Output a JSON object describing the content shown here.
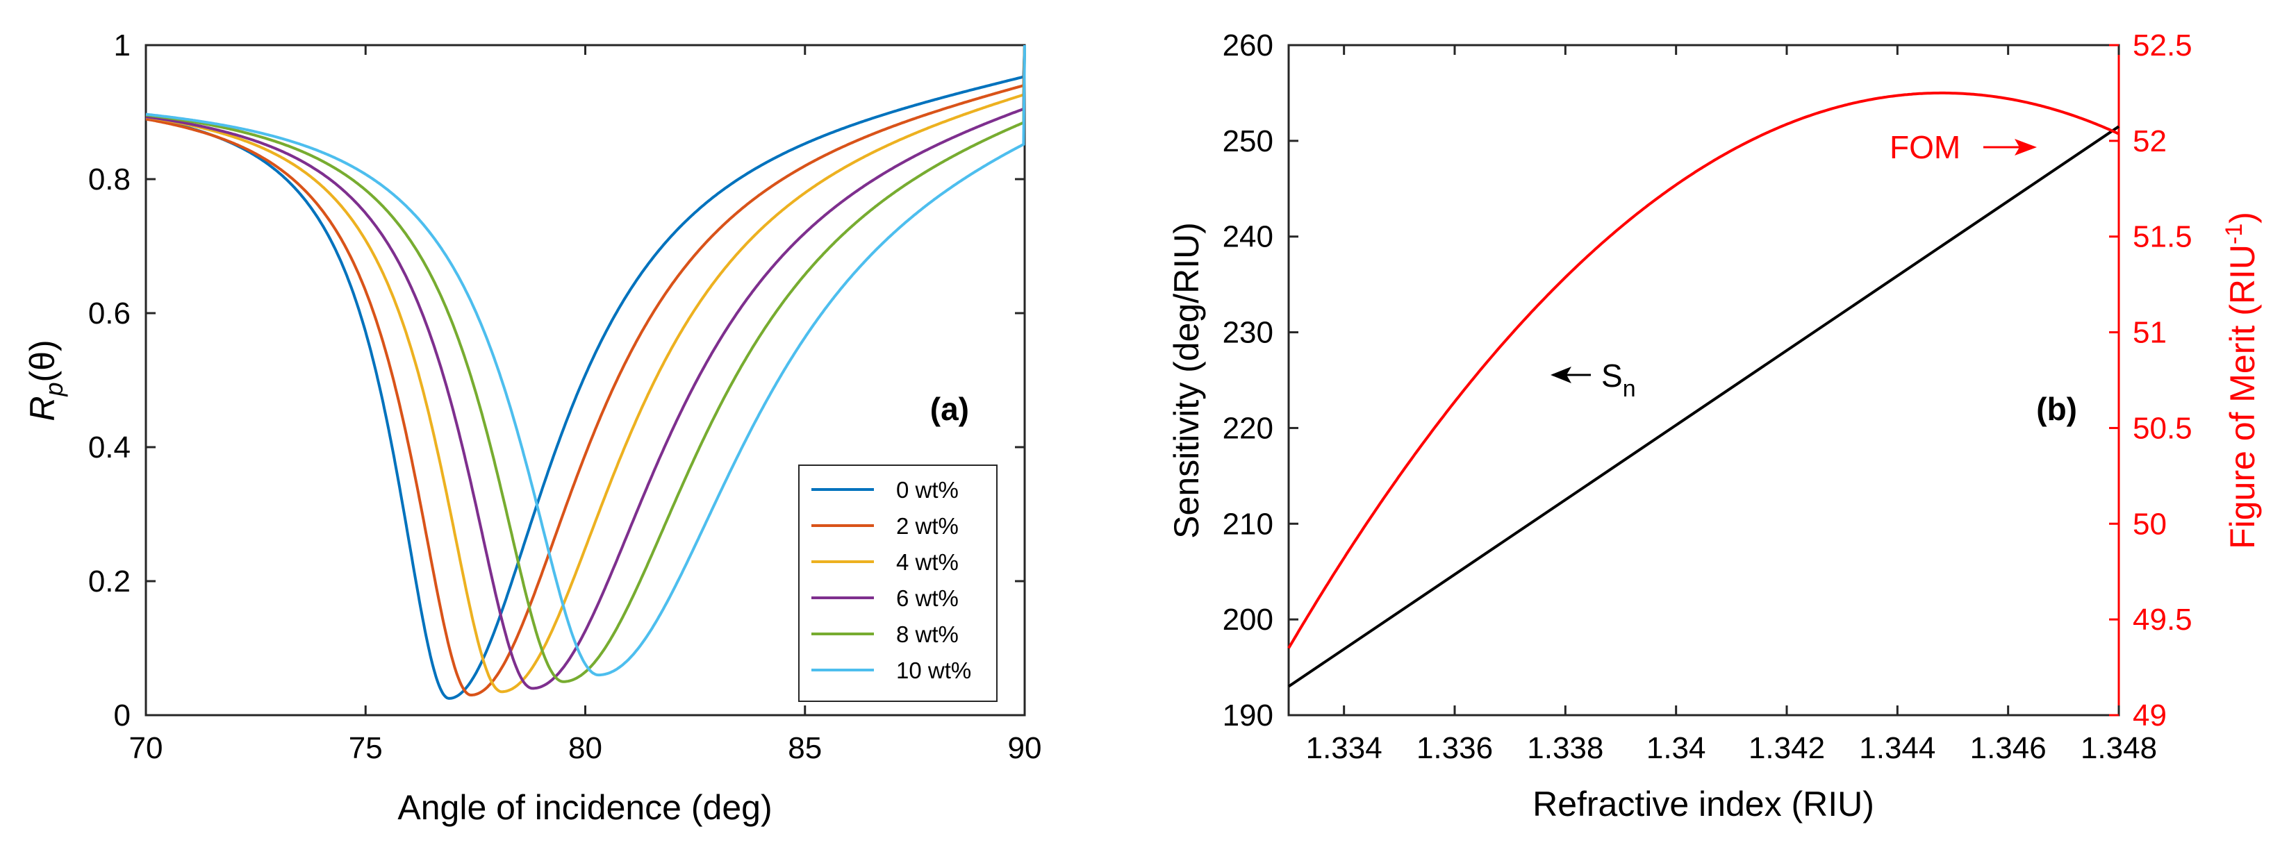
{
  "chart_data": [
    {
      "type": "line",
      "panel_label": "(a)",
      "xlabel": "Angle of incidence (deg)",
      "ylabel": "R_p(θ)",
      "ylabel_parts": {
        "main": "R",
        "sub": "p",
        "rest": "(θ)"
      },
      "xlim": [
        70,
        90
      ],
      "ylim": [
        0,
        1
      ],
      "xticks": [
        "70",
        "75",
        "80",
        "85",
        "90"
      ],
      "yticks": [
        "0",
        "0.2",
        "0.4",
        "0.6",
        "0.8",
        "1"
      ],
      "legend_position": "lower-right",
      "series": [
        {
          "name": "0 wt%",
          "color": "#0072bd",
          "min_angle": 76.9,
          "min_value": 0.025,
          "width_deg": 1.55,
          "start_value": 0.935,
          "points": [
            [
              70,
              0.935
            ],
            [
              74,
              0.83
            ],
            [
              75,
              0.66
            ],
            [
              76,
              0.3
            ],
            [
              76.9,
              0.025
            ],
            [
              78,
              0.27
            ],
            [
              80,
              0.58
            ],
            [
              82,
              0.72
            ],
            [
              85,
              0.85
            ],
            [
              90,
              1.0
            ]
          ]
        },
        {
          "name": "2 wt%",
          "color": "#d95319",
          "min_angle": 77.4,
          "min_value": 0.03,
          "width_deg": 1.7,
          "start_value": 0.935,
          "points": [
            [
              70,
              0.935
            ],
            [
              74,
              0.86
            ],
            [
              75,
              0.74
            ],
            [
              76,
              0.49
            ],
            [
              77.4,
              0.03
            ],
            [
              79,
              0.35
            ],
            [
              81,
              0.6
            ],
            [
              85,
              0.82
            ],
            [
              90,
              1.0
            ]
          ]
        },
        {
          "name": "4 wt%",
          "color": "#edb120",
          "min_angle": 78.1,
          "min_value": 0.035,
          "width_deg": 1.8,
          "start_value": 0.935,
          "points": [
            [
              70,
              0.935
            ],
            [
              75,
              0.81
            ],
            [
              76,
              0.66
            ],
            [
              77,
              0.38
            ],
            [
              78.1,
              0.035
            ],
            [
              80,
              0.42
            ],
            [
              82,
              0.64
            ],
            [
              85,
              0.8
            ],
            [
              90,
              1.0
            ]
          ]
        },
        {
          "name": "6 wt%",
          "color": "#7e2f8e",
          "min_angle": 78.8,
          "min_value": 0.04,
          "width_deg": 1.95,
          "start_value": 0.935,
          "points": [
            [
              70,
              0.935
            ],
            [
              75,
              0.86
            ],
            [
              76,
              0.77
            ],
            [
              77,
              0.58
            ],
            [
              78.8,
              0.04
            ],
            [
              80.5,
              0.42
            ],
            [
              83,
              0.66
            ],
            [
              85,
              0.77
            ],
            [
              90,
              1.0
            ]
          ]
        },
        {
          "name": "8 wt%",
          "color": "#77ac30",
          "min_angle": 79.5,
          "min_value": 0.05,
          "width_deg": 2.05,
          "start_value": 0.935,
          "points": [
            [
              70,
              0.935
            ],
            [
              75,
              0.9
            ],
            [
              76,
              0.84
            ],
            [
              77,
              0.72
            ],
            [
              79.5,
              0.05
            ],
            [
              81.5,
              0.44
            ],
            [
              84,
              0.68
            ],
            [
              90,
              1.0
            ]
          ]
        },
        {
          "name": "10 wt%",
          "color": "#4dbeee",
          "min_angle": 80.3,
          "min_value": 0.06,
          "width_deg": 2.2,
          "start_value": 0.935,
          "points": [
            [
              70,
              0.935
            ],
            [
              75,
              0.92
            ],
            [
              76,
              0.88
            ],
            [
              77,
              0.82
            ],
            [
              78,
              0.68
            ],
            [
              80.3,
              0.06
            ],
            [
              82.5,
              0.45
            ],
            [
              85,
              0.69
            ],
            [
              90,
              1.0
            ]
          ]
        }
      ]
    },
    {
      "type": "line",
      "panel_label": "(b)",
      "xlabel": "Refractive index (RIU)",
      "ylabel": "Sensitivity (deg/RIU)",
      "y2label": "Figure of Merit (RIU⁻¹)",
      "y2label_parts": {
        "main": "Figure of Merit (RIU",
        "sup": "-1",
        "rest": ")"
      },
      "xlim": [
        1.333,
        1.348
      ],
      "ylim": [
        190,
        260
      ],
      "y2lim": [
        49,
        52.5
      ],
      "xticks": [
        "1.334",
        "1.336",
        "1.338",
        "1.34",
        "1.342",
        "1.344",
        "1.346",
        "1.348"
      ],
      "yticks": [
        "190",
        "200",
        "210",
        "220",
        "230",
        "240",
        "250",
        "260"
      ],
      "y2ticks": [
        "49",
        "49.5",
        "50",
        "50.5",
        "51",
        "51.5",
        "52",
        "52.5"
      ],
      "series": [
        {
          "name": "Sn",
          "axis": "left",
          "color": "#000000",
          "x": [
            1.333,
            1.348
          ],
          "y": [
            193,
            251.5
          ]
        },
        {
          "name": "FOM",
          "axis": "right",
          "color": "#ff0000",
          "peak_x": 1.3448,
          "peak_y": 52.25,
          "x": [
            1.333,
            1.334,
            1.336,
            1.338,
            1.34,
            1.342,
            1.344,
            1.3448,
            1.346,
            1.348
          ],
          "y": [
            49.35,
            49.83,
            50.65,
            51.3,
            51.78,
            52.08,
            52.23,
            52.25,
            52.21,
            52.0
          ]
        }
      ],
      "annotations": [
        {
          "text_main": "S",
          "text_sub": "n",
          "arrow": "left",
          "at": [
            1.3376,
            222
          ]
        },
        {
          "text": "FOM",
          "arrow": "right",
          "at": [
            1.3462,
            252
          ]
        }
      ]
    }
  ]
}
